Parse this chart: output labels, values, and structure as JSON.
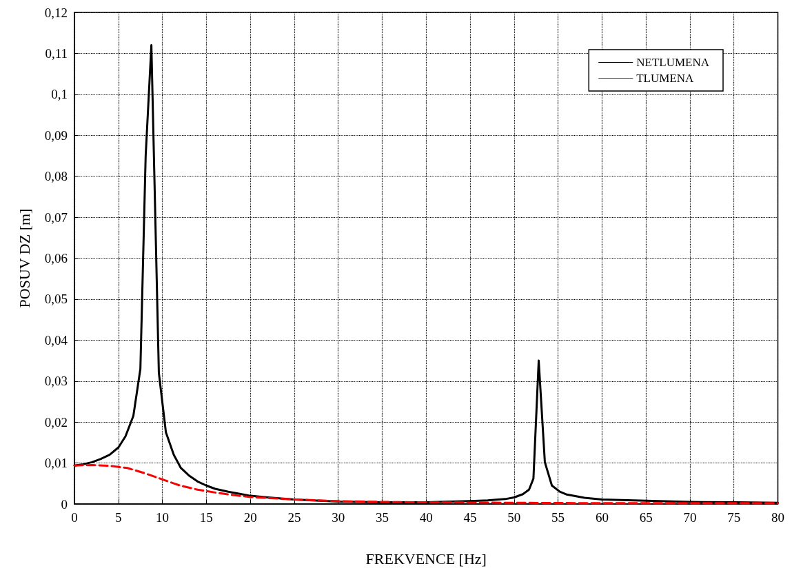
{
  "chart_data": {
    "type": "line",
    "xlabel": "FREKVENCE [Hz]",
    "ylabel": "POSUV DZ [m]",
    "xlim": [
      0,
      80
    ],
    "xticks": [
      0,
      5,
      10,
      15,
      20,
      25,
      30,
      35,
      40,
      45,
      50,
      55,
      60,
      65,
      70,
      75,
      80
    ],
    "ylim": [
      0,
      0.12
    ],
    "yticks": [
      {
        "value": 0,
        "label": "0"
      },
      {
        "value": 0.01,
        "label": "0,01"
      },
      {
        "value": 0.02,
        "label": "0,02"
      },
      {
        "value": 0.03,
        "label": "0,03"
      },
      {
        "value": 0.04,
        "label": "0,04"
      },
      {
        "value": 0.05,
        "label": "0,05"
      },
      {
        "value": 0.06,
        "label": "0,06"
      },
      {
        "value": 0.07,
        "label": "0,07"
      },
      {
        "value": 0.08,
        "label": "0,08"
      },
      {
        "value": 0.09,
        "label": "0,09"
      },
      {
        "value": 0.1,
        "label": "0,1"
      },
      {
        "value": 0.11,
        "label": "0,11"
      },
      {
        "value": 0.12,
        "label": "0,12"
      }
    ],
    "grid": true,
    "legend": "top right",
    "marker": "none",
    "series": [
      {
        "name": "NETLUMENA",
        "color": "#000000",
        "line_style": "solid",
        "x": [
          0,
          1,
          2,
          3,
          4,
          5,
          5.8,
          6.7,
          7.5,
          8.1,
          8.75,
          9.6,
          10.4,
          11.3,
          12.1,
          13,
          14,
          15,
          16,
          17.5,
          19,
          20,
          22,
          25,
          30,
          35,
          40,
          45,
          47,
          49,
          50,
          51,
          51.7,
          52.2,
          52.8,
          53.5,
          54.3,
          55.2,
          56,
          58,
          60,
          65,
          70,
          75,
          80
        ],
        "values": [
          0.0094,
          0.0097,
          0.0102,
          0.011,
          0.012,
          0.0138,
          0.0165,
          0.0215,
          0.033,
          0.085,
          0.112,
          0.032,
          0.0175,
          0.012,
          0.0088,
          0.007,
          0.0055,
          0.0045,
          0.0037,
          0.003,
          0.0024,
          0.002,
          0.0016,
          0.0011,
          0.0006,
          0.0004,
          0.0004,
          0.0007,
          0.0009,
          0.0012,
          0.0016,
          0.0024,
          0.0035,
          0.0062,
          0.035,
          0.0102,
          0.0045,
          0.003,
          0.0023,
          0.0015,
          0.0011,
          0.0008,
          0.0005,
          0.0004,
          0.0003
        ]
      },
      {
        "name": "TLUMENA",
        "color": "#ff0000",
        "line_style": "dashed",
        "x": [
          0,
          2,
          4,
          6,
          8,
          10,
          12,
          14,
          16,
          18,
          20,
          25,
          30,
          35,
          40,
          50,
          60,
          70,
          80
        ],
        "values": [
          0.0094,
          0.0095,
          0.0093,
          0.0088,
          0.0075,
          0.006,
          0.0045,
          0.0035,
          0.0028,
          0.0022,
          0.0017,
          0.0011,
          0.0007,
          0.0005,
          0.0004,
          0.0003,
          0.0002,
          0.0002,
          0.0002
        ]
      }
    ]
  }
}
